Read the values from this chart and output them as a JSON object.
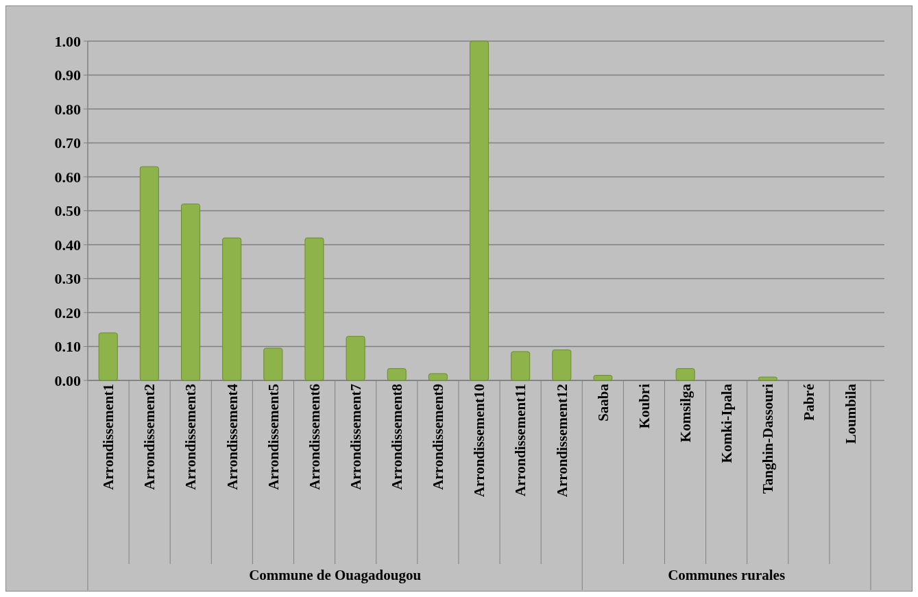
{
  "chart_data": {
    "type": "bar",
    "categories": [
      "Arrondissement1",
      "Arrondissement2",
      "Arrondissement3",
      "Arrondissement4",
      "Arrondissement5",
      "Arrondissement6",
      "Arrondissement7",
      "Arrondissement8",
      "Arrondissement9",
      "Arrondissement10",
      "Arrondissement11",
      "Arrondissement12",
      "Saaba",
      "Koubri",
      "Komsilga",
      "Komki-Ipala",
      "Tanghin-Dassouri",
      "Pabré",
      "Loumbila"
    ],
    "values": [
      0.14,
      0.63,
      0.52,
      0.42,
      0.095,
      0.42,
      0.13,
      0.035,
      0.02,
      1.0,
      0.085,
      0.09,
      0.015,
      0.0,
      0.035,
      0.0,
      0.01,
      0.0,
      0.0
    ],
    "color": "#8db34a",
    "ylim": [
      0,
      1
    ],
    "yticks": [
      {
        "value": 0,
        "label": "0.00"
      },
      {
        "value": 0.1,
        "label": "0.10"
      },
      {
        "value": 0.2,
        "label": "0.20"
      },
      {
        "value": 0.3,
        "label": "0.30"
      },
      {
        "value": 0.4,
        "label": "0.40"
      },
      {
        "value": 0.5,
        "label": "0.50"
      },
      {
        "value": 0.6,
        "label": "0.60"
      },
      {
        "value": 0.7,
        "label": "0.70"
      },
      {
        "value": 0.8,
        "label": "0.80"
      },
      {
        "value": 0.9,
        "label": "0.90"
      },
      {
        "value": 1,
        "label": "1.00"
      }
    ],
    "grid": "y",
    "annotations": [
      "Commune de Ouagadougou",
      "Communes rurales"
    ]
  }
}
